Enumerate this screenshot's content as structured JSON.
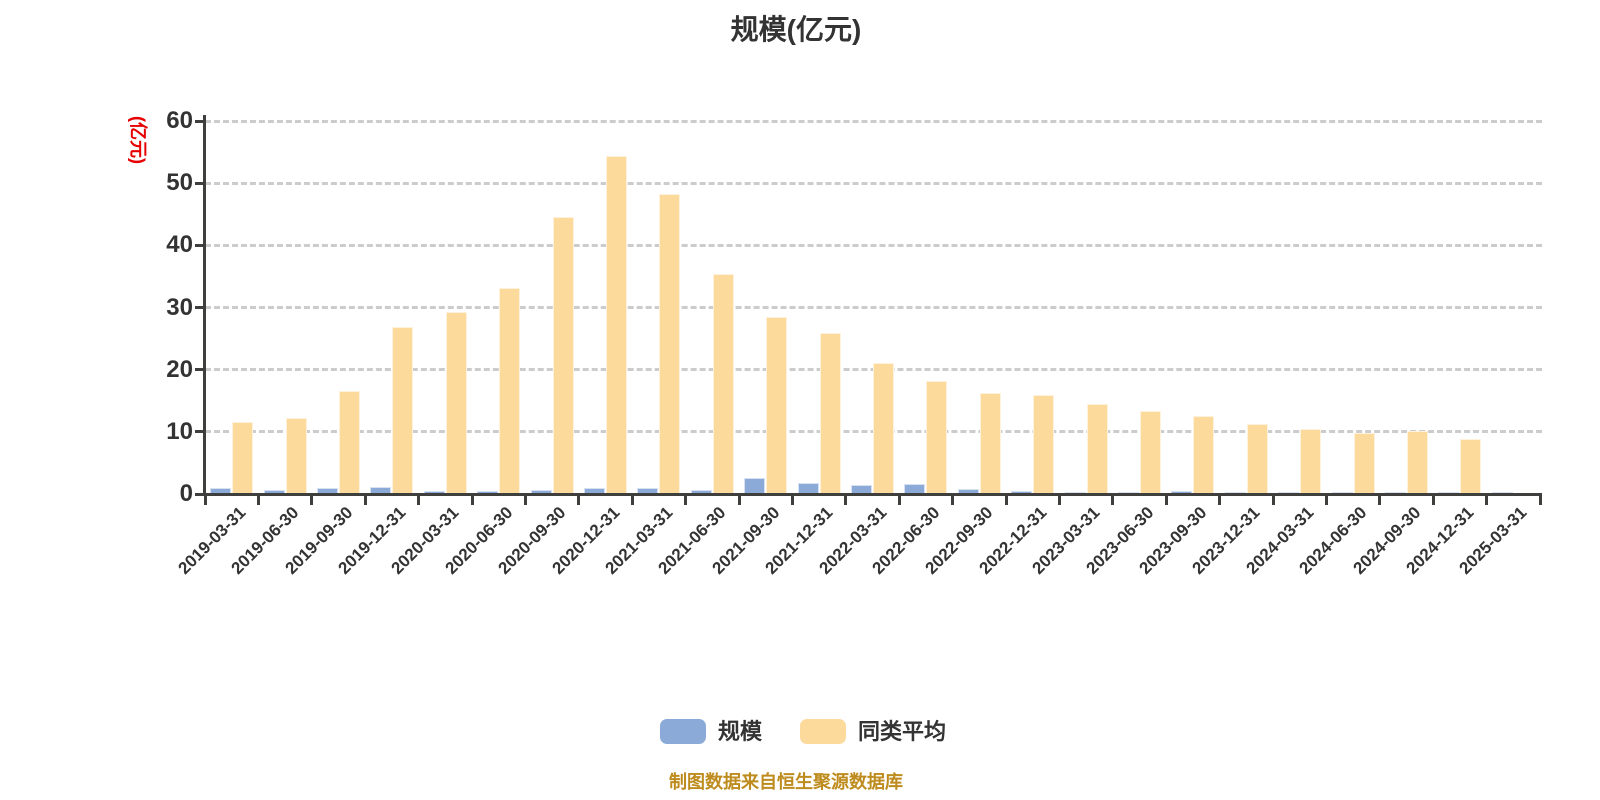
{
  "title": "规模(亿元)",
  "y_axis": {
    "unit_label": "(亿元)",
    "unit_color": "#E60000",
    "ticks": [
      0,
      10,
      20,
      30,
      40,
      50,
      60
    ]
  },
  "footer": {
    "text": "制图数据来自恒生聚源数据库",
    "color": "#BE8C1E"
  },
  "colors": {
    "background": "#FFFFFF",
    "axis": "#3F3F3D",
    "gridline": "#CCCCCC",
    "text": "#333333",
    "series_scale": "#8CAAD8",
    "series_peer_average": "#FCDA9C"
  },
  "chart_data": {
    "type": "bar",
    "title": "规模(亿元)",
    "ylabel": "(亿元)",
    "xlabel": "",
    "ylim": [
      0,
      60
    ],
    "yticks": [
      0,
      10,
      20,
      30,
      40,
      50,
      60
    ],
    "grid": "horizontal-dashed",
    "legend_position": "bottom",
    "categories": [
      "2019-03-31",
      "2019-06-30",
      "2019-09-30",
      "2019-12-31",
      "2020-03-31",
      "2020-06-30",
      "2020-09-30",
      "2020-12-31",
      "2021-03-31",
      "2021-06-30",
      "2021-09-30",
      "2021-12-31",
      "2022-03-31",
      "2022-06-30",
      "2022-09-30",
      "2022-12-31",
      "2023-03-31",
      "2023-06-30",
      "2023-09-30",
      "2023-12-31",
      "2024-03-31",
      "2024-06-30",
      "2024-09-30",
      "2024-12-31",
      "2025-03-31"
    ],
    "series": [
      {
        "name": "规模",
        "color": "#8CAAD8",
        "values": [
          0.9,
          0.7,
          1.0,
          1.1,
          0.5,
          0.5,
          0.6,
          0.9,
          0.9,
          0.7,
          2.6,
          1.7,
          1.5,
          1.6,
          0.8,
          0.5,
          0.4,
          0.4,
          0.5,
          0.4,
          0.4,
          0.3,
          0.4,
          0.3,
          0.4
        ]
      },
      {
        "name": "同类平均",
        "color": "#FCDA9C",
        "values": [
          11.6,
          12.2,
          16.6,
          26.9,
          29.2,
          33.2,
          44.6,
          54.3,
          48.2,
          35.4,
          28.5,
          25.9,
          21.1,
          18.2,
          16.2,
          16.0,
          14.4,
          13.4,
          12.5,
          11.2,
          10.5,
          9.8,
          10.2,
          8.9,
          null
        ]
      }
    ]
  }
}
